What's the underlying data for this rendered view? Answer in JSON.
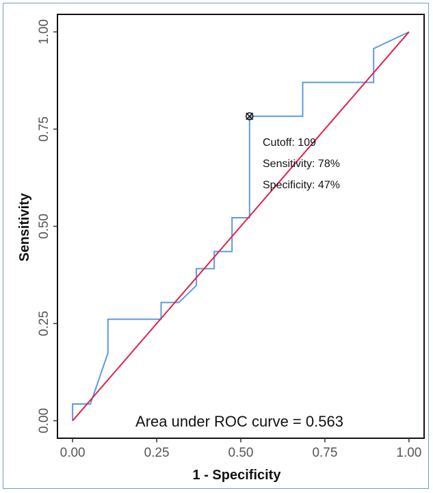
{
  "chart_data": {
    "type": "line",
    "xlabel": "1 - Specificity",
    "ylabel": "Sensitivity",
    "xlim": [
      0,
      1
    ],
    "ylim": [
      0,
      1
    ],
    "x_ticks": [
      "0.00",
      "0.25",
      "0.50",
      "0.75",
      "1.00"
    ],
    "y_ticks": [
      "0.00",
      "0.25",
      "0.50",
      "0.75",
      "1.00"
    ],
    "grid": false,
    "colors": {
      "roc": "#5b9ae0",
      "reference": "#e0204a",
      "border": "#6f9ad6"
    },
    "roc_curve": {
      "x": [
        0,
        0,
        0.053,
        0.105,
        0.105,
        0.263,
        0.263,
        0.316,
        0.368,
        0.368,
        0.421,
        0.421,
        0.474,
        0.474,
        0.526,
        0.526,
        0.684,
        0.684,
        0.895,
        0.895,
        1
      ],
      "y": [
        0,
        0.043,
        0.043,
        0.174,
        0.261,
        0.261,
        0.304,
        0.304,
        0.348,
        0.391,
        0.391,
        0.435,
        0.435,
        0.522,
        0.522,
        0.783,
        0.783,
        0.87,
        0.87,
        0.957,
        1
      ]
    },
    "reference_line": {
      "x": [
        0,
        1
      ],
      "y": [
        0,
        1
      ]
    },
    "cutoff_point": {
      "x": 0.526,
      "y": 0.783
    },
    "annotations": {
      "cutoff": "Cutoff: 109",
      "sensitivity": "Sensitivity: 78%",
      "specificity": "Specificity: 47%"
    },
    "auc_text": "Area under ROC curve =  0.563"
  }
}
